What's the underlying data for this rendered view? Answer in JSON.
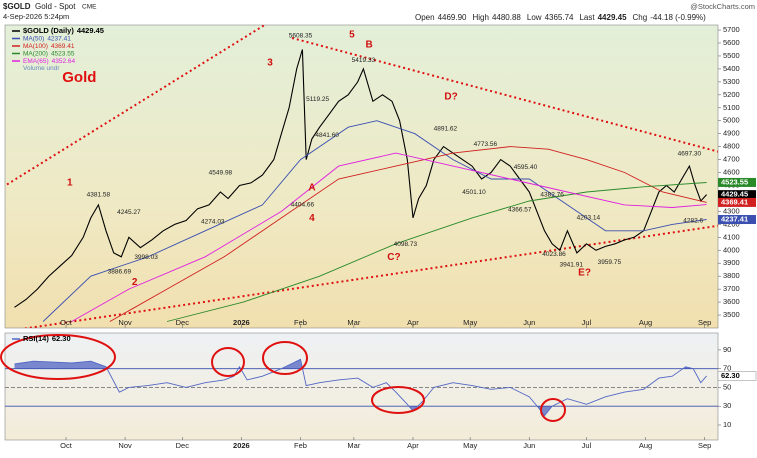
{
  "header": {
    "symbol": "$GOLD",
    "name": "Gold - Spot",
    "exchange": "CME",
    "date": "4-Sep-2026 5:24pm",
    "brand": "@StockCharts.com",
    "quote": [
      {
        "label": "Open",
        "value": "4469.90"
      },
      {
        "label": "High",
        "value": "4480.88"
      },
      {
        "label": "Low",
        "value": "4365.74"
      },
      {
        "label": "Last",
        "value": "4429.45"
      },
      {
        "label": "Chg",
        "value": "-44.18 (-0.99%)"
      }
    ]
  },
  "chart_data": [
    {
      "type": "line",
      "title": "Gold",
      "volume_label": "Volume undr",
      "xlim": [
        -5,
        369
      ],
      "ylim": [
        3400,
        5739
      ],
      "xticks": [
        {
          "value": 27,
          "label": "Oct"
        },
        {
          "value": 58,
          "label": "Nov"
        },
        {
          "value": 88,
          "label": "Dec"
        },
        {
          "value": 119,
          "label": "2026"
        },
        {
          "value": 150,
          "label": "Feb"
        },
        {
          "value": 178,
          "label": "Mar"
        },
        {
          "value": 209,
          "label": "Apr"
        },
        {
          "value": 239,
          "label": "May"
        },
        {
          "value": 270,
          "label": "Jun"
        },
        {
          "value": 300,
          "label": "Jul"
        },
        {
          "value": 331,
          "label": "Aug"
        },
        {
          "value": 362,
          "label": "Sep"
        }
      ],
      "yticks": [
        3500,
        3600,
        3700,
        3800,
        3900,
        4000,
        4100,
        4200,
        4300,
        4400,
        4500,
        4600,
        4700,
        4800,
        4900,
        5000,
        5100,
        5200,
        5300,
        5400,
        5500,
        5600,
        5700
      ],
      "series": [
        {
          "name": "$GOLD (Daily)",
          "color": "#000000",
          "axis_tag": true,
          "x": [
            0,
            6,
            12,
            18,
            24,
            30,
            36,
            40,
            44,
            48,
            52,
            56,
            60,
            66,
            72,
            78,
            84,
            90,
            96,
            102,
            108,
            112,
            118,
            124,
            130,
            136,
            140,
            144,
            148,
            151,
            153,
            156,
            160,
            165,
            170,
            175,
            180,
            183,
            188,
            193,
            198,
            202,
            206,
            209,
            212,
            216,
            220,
            225,
            230,
            235,
            240,
            245,
            250,
            255,
            260,
            265,
            270,
            274,
            278,
            282,
            286,
            290,
            295,
            300,
            305,
            310,
            315,
            320,
            325,
            330,
            334,
            338,
            342,
            346,
            350,
            354,
            357,
            360,
            363
          ],
          "values": [
            3560,
            3620,
            3700,
            3800,
            3880,
            3960,
            4100,
            4250,
            4350,
            4150,
            3980,
            3950,
            4100,
            4020,
            4080,
            4150,
            4200,
            4230,
            4320,
            4350,
            4450,
            4400,
            4500,
            4520,
            4580,
            4700,
            4900,
            5100,
            5400,
            5550,
            4700,
            4860,
            4950,
            5050,
            5150,
            5200,
            5300,
            5400,
            5150,
            5200,
            5150,
            5000,
            4700,
            4250,
            4400,
            4500,
            4700,
            4800,
            4750,
            4700,
            4650,
            4550,
            4600,
            4700,
            4650,
            4550,
            4450,
            4300,
            4150,
            4050,
            4000,
            4150,
            3980,
            4050,
            4000,
            4030,
            4050,
            4080,
            4100,
            4150,
            4300,
            4450,
            4500,
            4450,
            4550,
            4650,
            4500,
            4380,
            4429.45
          ]
        },
        {
          "name": "MA(50)",
          "color": "#3a4fb0",
          "axis_tag": true,
          "x": [
            15,
            40,
            70,
            100,
            130,
            150,
            175,
            190,
            210,
            230,
            250,
            270,
            290,
            310,
            330,
            345,
            363
          ],
          "values": [
            3450,
            3800,
            3950,
            4150,
            4350,
            4700,
            4950,
            5000,
            4900,
            4700,
            4550,
            4550,
            4350,
            4150,
            4150,
            4200,
            4237.41
          ]
        },
        {
          "name": "MA(100)",
          "color": "#d02020",
          "axis_tag": true,
          "x": [
            50,
            80,
            110,
            140,
            170,
            200,
            230,
            260,
            280,
            300,
            320,
            340,
            363
          ],
          "values": [
            3450,
            3700,
            3950,
            4250,
            4550,
            4650,
            4750,
            4800,
            4780,
            4700,
            4600,
            4450,
            4369.41
          ]
        },
        {
          "name": "MA(200)",
          "color": "#2a8a2a",
          "axis_tag": true,
          "x": [
            80,
            120,
            160,
            200,
            240,
            270,
            300,
            330,
            363
          ],
          "values": [
            3450,
            3600,
            3800,
            4050,
            4250,
            4380,
            4450,
            4490,
            4523.55
          ]
        },
        {
          "name": "EMA(65)",
          "color": "#e020e0",
          "axis_tag": false,
          "x": [
            30,
            60,
            100,
            140,
            170,
            200,
            230,
            260,
            290,
            320,
            345,
            363
          ],
          "values": [
            3450,
            3700,
            3950,
            4300,
            4650,
            4750,
            4650,
            4550,
            4450,
            4350,
            4330,
            4352.64
          ]
        }
      ],
      "waves": [
        {
          "label": "1",
          "x": 29,
          "y": 4519
        },
        {
          "label": "2",
          "x": 63,
          "y": 3754
        },
        {
          "label": "3",
          "x": 134,
          "y": 5445
        },
        {
          "label": "4",
          "x": 156,
          "y": 4248
        },
        {
          "label": "5",
          "x": 177,
          "y": 5661
        },
        {
          "label": "A",
          "x": 156,
          "y": 4480
        },
        {
          "label": "B",
          "x": 186,
          "y": 5584
        },
        {
          "label": "C?",
          "x": 199,
          "y": 3947
        },
        {
          "label": "D?",
          "x": 229,
          "y": 5183
        },
        {
          "label": "E?",
          "x": 299,
          "y": 3824
        }
      ],
      "title_position": {
        "x": 34,
        "y": 5329
      },
      "highs": [
        {
          "label": "4381.58",
          "x": 44,
          "y": 4381.58
        },
        {
          "label": "4245.27",
          "x": 60,
          "y": 4245.27
        },
        {
          "label": "4549.98",
          "x": 108,
          "y": 4549.98
        },
        {
          "label": "5608.35",
          "x": 150,
          "y": 5608.35
        },
        {
          "label": "5119.25",
          "x": 159,
          "y": 5119.25
        },
        {
          "label": "5419.33",
          "x": 183,
          "y": 5419.33
        },
        {
          "label": "4841.60",
          "x": 164,
          "y": 4841.6
        },
        {
          "label": "4891.62",
          "x": 226,
          "y": 4891.62
        },
        {
          "label": "4773.56",
          "x": 247,
          "y": 4773.56
        },
        {
          "label": "4595.40",
          "x": 268,
          "y": 4595.4
        },
        {
          "label": "4382.76",
          "x": 282,
          "y": 4382.76
        },
        {
          "label": "4203.14",
          "x": 301,
          "y": 4203.14
        },
        {
          "label": "4697.30",
          "x": 354,
          "y": 4697.3
        }
      ],
      "lows": [
        {
          "label": "3886.69",
          "x": 55,
          "y": 3886.69
        },
        {
          "label": "3998.03",
          "x": 69,
          "y": 3998.03
        },
        {
          "label": "4274.03",
          "x": 104,
          "y": 4274.03
        },
        {
          "label": "4404.66",
          "x": 151,
          "y": 4404.66
        },
        {
          "label": "4098.73",
          "x": 205,
          "y": 4098.73
        },
        {
          "label": "4501.10",
          "x": 241,
          "y": 4501.1
        },
        {
          "label": "4366.57",
          "x": 265,
          "y": 4366.57
        },
        {
          "label": "4023.86",
          "x": 283,
          "y": 4023.86
        },
        {
          "label": "3941.91",
          "x": 292,
          "y": 3941.91
        },
        {
          "label": "3959.75",
          "x": 312,
          "y": 3959.75
        },
        {
          "label": "4282.6",
          "x": 356,
          "y": 4282.6
        }
      ]
    },
    {
      "type": "line",
      "xlim": [
        -5,
        369
      ],
      "ylim": [
        -6,
        108
      ],
      "xticks": [
        {
          "value": 27,
          "label": "Oct"
        },
        {
          "value": 58,
          "label": "Nov"
        },
        {
          "value": 88,
          "label": "Dec"
        },
        {
          "value": 119,
          "label": "2026"
        },
        {
          "value": 150,
          "label": "Feb"
        },
        {
          "value": 178,
          "label": "Mar"
        },
        {
          "value": 209,
          "label": "Apr"
        },
        {
          "value": 239,
          "label": "May"
        },
        {
          "value": 270,
          "label": "Jun"
        },
        {
          "value": 300,
          "label": "Jul"
        },
        {
          "value": 331,
          "label": "Aug"
        },
        {
          "value": 362,
          "label": "Sep"
        }
      ],
      "yticks": [
        10,
        30,
        50,
        70,
        90
      ],
      "overbought": 70,
      "midline": 50,
      "oversold": 30,
      "series": [
        {
          "name": "RSI(14)",
          "color": "#5266c4",
          "last_label": "62.30",
          "x": [
            0,
            10,
            20,
            30,
            40,
            48,
            55,
            60,
            70,
            80,
            90,
            100,
            110,
            115,
            118,
            122,
            130,
            140,
            145,
            150,
            153,
            160,
            170,
            180,
            188,
            195,
            200,
            206,
            209,
            214,
            220,
            230,
            240,
            250,
            260,
            270,
            275,
            278,
            282,
            290,
            300,
            310,
            320,
            330,
            338,
            345,
            352,
            356,
            360,
            363
          ],
          "values": [
            75,
            78,
            77,
            76,
            78,
            72,
            45,
            50,
            52,
            55,
            50,
            55,
            58,
            62,
            72,
            58,
            62,
            70,
            75,
            80,
            52,
            55,
            58,
            60,
            50,
            55,
            45,
            32,
            25,
            35,
            50,
            55,
            52,
            48,
            50,
            40,
            28,
            20,
            30,
            38,
            32,
            40,
            45,
            48,
            60,
            62,
            72,
            70,
            55,
            62.3
          ]
        }
      ]
    }
  ]
}
